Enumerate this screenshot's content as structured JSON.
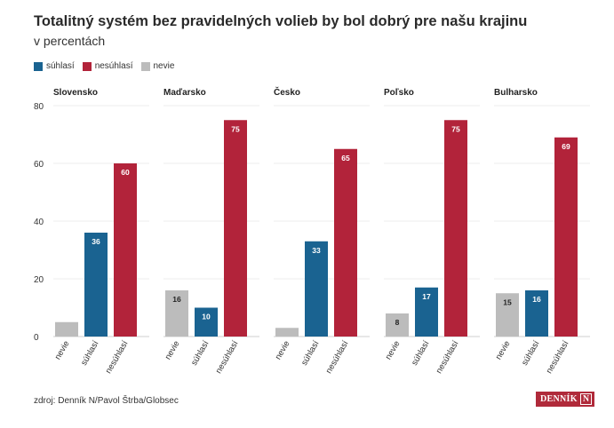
{
  "title": "Totalitný systém bez pravidelných volieb by bol dobrý pre našu krajinu",
  "subtitle": "v percentách",
  "legend": [
    {
      "label": "súhlasí",
      "color": "#1a6391"
    },
    {
      "label": "nesúhlasí",
      "color": "#b2233a"
    },
    {
      "label": "nevie",
      "color": "#bcbcbc"
    }
  ],
  "source": "zdroj: Denník N/Pavol Štrba/Globsec",
  "logo": {
    "text": "DENNÍK",
    "mark": "N"
  },
  "chart_data": {
    "type": "bar",
    "ylim": [
      0,
      80
    ],
    "yticks": [
      0,
      20,
      40,
      60,
      80
    ],
    "grid": true,
    "legend_position": "top-left",
    "categories": [
      "nevie",
      "súhlasí",
      "nesúhlasí"
    ],
    "colors": {
      "nevie": "#bcbcbc",
      "súhlasí": "#1a6391",
      "nesúhlasí": "#b2233a"
    },
    "panels": [
      {
        "name": "Slovensko",
        "values": [
          5,
          36,
          60
        ],
        "labels": [
          "",
          "36",
          "60"
        ]
      },
      {
        "name": "Maďarsko",
        "values": [
          16,
          10,
          75
        ],
        "labels": [
          "16",
          "10",
          "75"
        ]
      },
      {
        "name": "Česko",
        "values": [
          3,
          33,
          65
        ],
        "labels": [
          "",
          "33",
          "65"
        ]
      },
      {
        "name": "Poľsko",
        "values": [
          8,
          17,
          75
        ],
        "labels": [
          "8",
          "17",
          "75"
        ]
      },
      {
        "name": "Bulharsko",
        "values": [
          15,
          16,
          69
        ],
        "labels": [
          "15",
          "16",
          "69"
        ]
      }
    ]
  }
}
